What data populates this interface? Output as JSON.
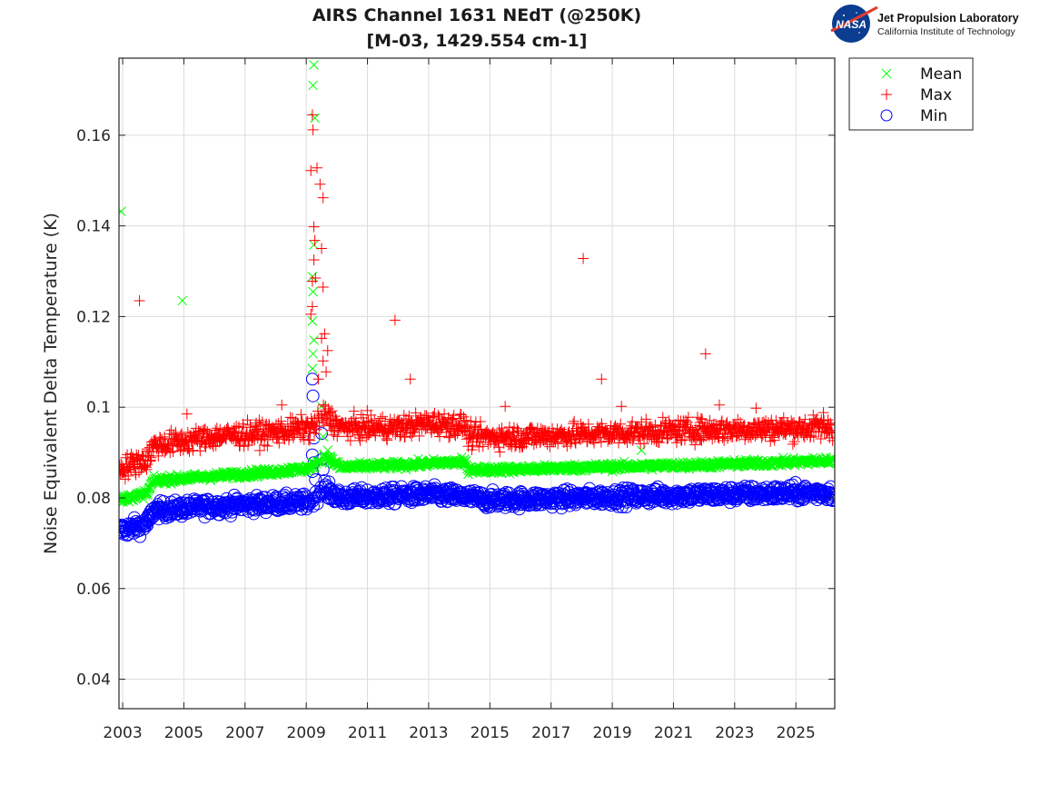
{
  "logo": {
    "name": "NASA",
    "org": "Jet Propulsion Laboratory",
    "sub": "California Institute of Technology"
  },
  "chart_data": {
    "type": "scatter",
    "title": "AIRS Channel 1631 NEdT (@250K)",
    "subtitle": "[M-03, 1429.554 cm-1]",
    "xlabel": "",
    "ylabel": "Noise Equivalent Delta Temperature (K)",
    "xlim": [
      2002.88,
      2026.27
    ],
    "ylim": [
      0.0335,
      0.177
    ],
    "grid": true,
    "legend_position": "outside-top-right",
    "xticks": [
      2003,
      2005,
      2007,
      2009,
      2011,
      2013,
      2015,
      2017,
      2019,
      2021,
      2023,
      2025
    ],
    "xtick_labels": [
      "2003",
      "2005",
      "2007",
      "2009",
      "2011",
      "2013",
      "2015",
      "2017",
      "2019",
      "2021",
      "2023",
      "2025"
    ],
    "yticks": [
      0.04,
      0.06,
      0.08,
      0.1,
      0.12,
      0.14,
      0.16
    ],
    "ytick_labels": [
      "0.04",
      "0.06",
      "0.08",
      "0.1",
      "0.12",
      "0.14",
      "0.16"
    ],
    "series": [
      {
        "name": "Max",
        "marker": "plus",
        "color": "#ff0000",
        "trend": [
          [
            2002.9,
            0.0865
          ],
          [
            2003.8,
            0.0885
          ],
          [
            2004.0,
            0.0915
          ],
          [
            2006.0,
            0.0935
          ],
          [
            2008.0,
            0.0945
          ],
          [
            2009.1,
            0.0955
          ],
          [
            2009.6,
            0.0985
          ],
          [
            2010.1,
            0.0955
          ],
          [
            2012.0,
            0.0955
          ],
          [
            2013.0,
            0.0965
          ],
          [
            2014.2,
            0.096
          ],
          [
            2014.3,
            0.0935
          ],
          [
            2016.0,
            0.0935
          ],
          [
            2018.0,
            0.094
          ],
          [
            2020.0,
            0.0945
          ],
          [
            2022.0,
            0.095
          ],
          [
            2024.0,
            0.0952
          ],
          [
            2026.2,
            0.0955
          ]
        ],
        "spread": 0.0025,
        "outliers": [
          [
            2003.55,
            0.1235
          ],
          [
            2009.15,
            0.1522
          ],
          [
            2009.2,
            0.1645
          ],
          [
            2009.22,
            0.1612
          ],
          [
            2009.25,
            0.1398
          ],
          [
            2009.28,
            0.1368
          ],
          [
            2009.35,
            0.1528
          ],
          [
            2009.45,
            0.1492
          ],
          [
            2009.55,
            0.1462
          ],
          [
            2009.2,
            0.1278
          ],
          [
            2009.25,
            0.1325
          ],
          [
            2009.3,
            0.1285
          ],
          [
            2009.5,
            0.135
          ],
          [
            2009.55,
            0.1265
          ],
          [
            2009.2,
            0.1222
          ],
          [
            2009.15,
            0.1205
          ],
          [
            2009.6,
            0.1162
          ],
          [
            2009.5,
            0.1152
          ],
          [
            2009.7,
            0.1125
          ],
          [
            2009.55,
            0.1102
          ],
          [
            2009.65,
            0.1078
          ],
          [
            2009.4,
            0.1062
          ],
          [
            2011.9,
            0.1192
          ],
          [
            2012.4,
            0.1062
          ],
          [
            2018.05,
            0.1328
          ],
          [
            2018.65,
            0.1062
          ],
          [
            2022.05,
            0.1118
          ],
          [
            2008.2,
            0.1005
          ],
          [
            2005.1,
            0.0985
          ],
          [
            2015.5,
            0.1002
          ],
          [
            2019.3,
            0.1002
          ],
          [
            2022.5,
            0.1005
          ],
          [
            2023.7,
            0.0998
          ],
          [
            2025.9,
            0.0988
          ]
        ]
      },
      {
        "name": "Mean",
        "marker": "x",
        "color": "#00ff00",
        "trend": [
          [
            2002.9,
            0.0795
          ],
          [
            2003.8,
            0.081
          ],
          [
            2004.0,
            0.0838
          ],
          [
            2006.0,
            0.0848
          ],
          [
            2008.0,
            0.0858
          ],
          [
            2009.1,
            0.0865
          ],
          [
            2009.6,
            0.0895
          ],
          [
            2010.1,
            0.0868
          ],
          [
            2012.0,
            0.0872
          ],
          [
            2013.5,
            0.0878
          ],
          [
            2014.2,
            0.0878
          ],
          [
            2014.3,
            0.0862
          ],
          [
            2016.0,
            0.0863
          ],
          [
            2018.0,
            0.0867
          ],
          [
            2020.0,
            0.087
          ],
          [
            2022.0,
            0.0873
          ],
          [
            2024.0,
            0.0877
          ],
          [
            2026.2,
            0.0882
          ]
        ],
        "spread": 0.0008,
        "outliers": [
          [
            2002.95,
            0.1432
          ],
          [
            2004.95,
            0.1235
          ],
          [
            2009.25,
            0.1755
          ],
          [
            2009.22,
            0.171
          ],
          [
            2009.28,
            0.1638
          ],
          [
            2009.25,
            0.1358
          ],
          [
            2009.2,
            0.1288
          ],
          [
            2009.22,
            0.1255
          ],
          [
            2009.2,
            0.119
          ],
          [
            2009.25,
            0.1148
          ],
          [
            2009.22,
            0.1118
          ],
          [
            2009.2,
            0.1085
          ],
          [
            2009.5,
            0.1002
          ],
          [
            2009.55,
            0.0935
          ],
          [
            2009.7,
            0.0905
          ],
          [
            2019.95,
            0.0905
          ]
        ]
      },
      {
        "name": "Min",
        "marker": "circle",
        "color": "#0000ff",
        "trend": [
          [
            2002.9,
            0.0728
          ],
          [
            2003.8,
            0.0742
          ],
          [
            2004.0,
            0.0772
          ],
          [
            2006.0,
            0.0782
          ],
          [
            2008.0,
            0.0788
          ],
          [
            2009.1,
            0.079
          ],
          [
            2009.5,
            0.082
          ],
          [
            2010.1,
            0.08
          ],
          [
            2012.0,
            0.0805
          ],
          [
            2013.0,
            0.0808
          ],
          [
            2014.2,
            0.0802
          ],
          [
            2015.0,
            0.0795
          ],
          [
            2017.0,
            0.0798
          ],
          [
            2019.0,
            0.0802
          ],
          [
            2021.0,
            0.0805
          ],
          [
            2023.0,
            0.0808
          ],
          [
            2026.2,
            0.0812
          ]
        ],
        "spread": 0.0018,
        "outliers": [
          [
            2009.2,
            0.1062
          ],
          [
            2009.22,
            0.1025
          ],
          [
            2009.25,
            0.0932
          ],
          [
            2009.5,
            0.0942
          ],
          [
            2009.2,
            0.0895
          ],
          [
            2009.25,
            0.0878
          ],
          [
            2009.5,
            0.0885
          ],
          [
            2009.55,
            0.0862
          ],
          [
            2009.2,
            0.0858
          ],
          [
            2009.3,
            0.084
          ],
          [
            2009.6,
            0.0838
          ]
        ]
      }
    ]
  }
}
